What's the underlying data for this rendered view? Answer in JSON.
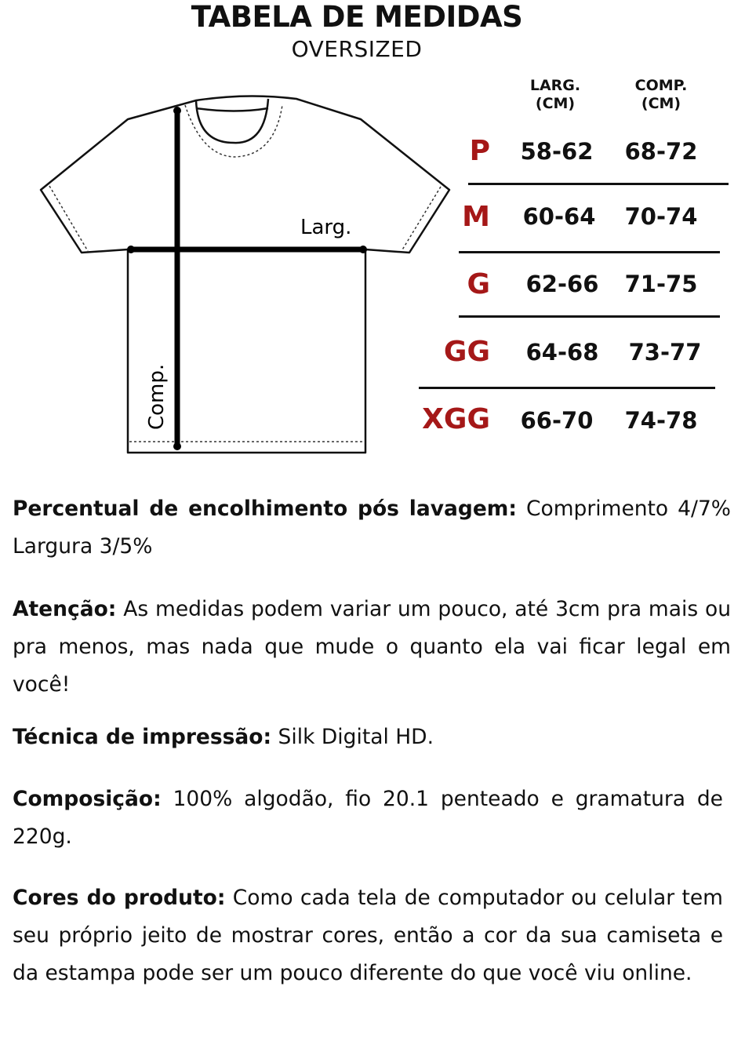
{
  "header": {
    "title": "TABELA DE MEDIDAS",
    "subtitle": "OVERSIZED"
  },
  "diagram": {
    "width_label": "Larg.",
    "length_label": "Comp."
  },
  "table": {
    "columns": [
      {
        "line1": "LARG.",
        "line2": "(CM)"
      },
      {
        "line1": "COMP.",
        "line2": "(CM)"
      }
    ],
    "rows": [
      {
        "size": "P",
        "larg": "58-62",
        "comp": "68-72"
      },
      {
        "size": "M",
        "larg": "60-64",
        "comp": "70-74"
      },
      {
        "size": "G",
        "larg": "62-66",
        "comp": "71-75"
      },
      {
        "size": "GG",
        "larg": "64-68",
        "comp": "73-77"
      },
      {
        "size": "XGG",
        "larg": "66-70",
        "comp": "74-78"
      }
    ],
    "size_color": "#a51818"
  },
  "info": [
    {
      "label": "Percentual de encolhimento pós lavagem:",
      "text": " Comprimento 4/7% Largura 3/5%"
    },
    {
      "label": "Atenção:",
      "text": " As medidas podem variar um pouco, até 3cm pra mais ou pra menos, mas nada que mude o quanto ela vai ficar legal em você!"
    },
    {
      "label": "Técnica de impressão:",
      "text": " Silk Digital HD."
    },
    {
      "label": "Composição:",
      "text": " 100% algodão, fio 20.1 penteado e gramatura de 220g."
    },
    {
      "label": "Cores do produto:",
      "text": " Como cada tela de computador ou celular tem seu próprio jeito de mostrar cores, então a cor da sua camiseta e da estampa pode ser um pouco diferente do que você viu online."
    }
  ]
}
